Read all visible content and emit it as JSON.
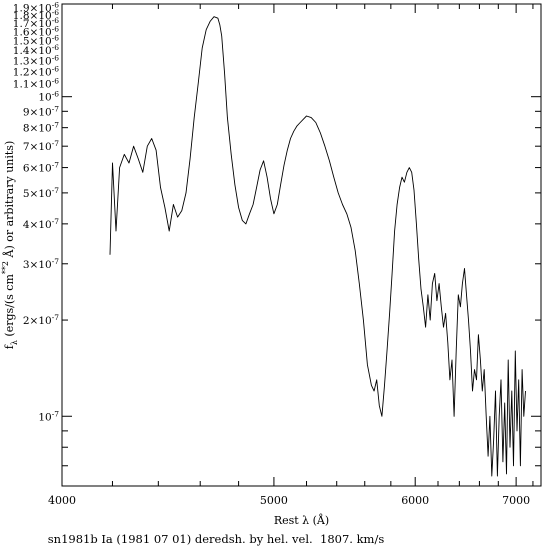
{
  "chart_data": {
    "type": "line",
    "title": "",
    "caption": "sn1981b Ia (1981 07 01) deredsh. by hel. vel.  1807. km/s",
    "xlabel": "Rest λ (Å)",
    "ylabel": "fλ (ergs/(s cm**2 Å) or arbitrary units)",
    "ylabel_parts": {
      "symbol": "f",
      "subscript": "λ",
      "units_a": " (ergs/(s cm",
      "units_sup": "**2",
      "units_b": " Å) or arbitrary units)"
    },
    "x_scale": "reciprocal",
    "y_scale": "log",
    "xlim": [
      4000,
      7300
    ],
    "ylim": [
      6.05e-08,
      1.95e-06
    ],
    "grid": false,
    "x_ticks": [
      {
        "value": 4000,
        "label": "4000"
      },
      {
        "value": 5000,
        "label": "5000"
      },
      {
        "value": 6000,
        "label": "6000"
      },
      {
        "value": 7000,
        "label": "7000"
      }
    ],
    "y_ticks": [
      {
        "value": 1e-07,
        "mant": "",
        "exp": "-7"
      },
      {
        "value": 2e-07,
        "mant": "2",
        "exp": "-7"
      },
      {
        "value": 3e-07,
        "mant": "3",
        "exp": "-7"
      },
      {
        "value": 4e-07,
        "mant": "4",
        "exp": "-7"
      },
      {
        "value": 5e-07,
        "mant": "5",
        "exp": "-7"
      },
      {
        "value": 6e-07,
        "mant": "6",
        "exp": "-7"
      },
      {
        "value": 7e-07,
        "mant": "7",
        "exp": "-7"
      },
      {
        "value": 8e-07,
        "mant": "8",
        "exp": "-7"
      },
      {
        "value": 9e-07,
        "mant": "9",
        "exp": "-7"
      },
      {
        "value": 1e-06,
        "mant": "",
        "exp": "-6"
      },
      {
        "value": 1.1e-06,
        "mant": "1.1",
        "exp": "-6"
      },
      {
        "value": 1.2e-06,
        "mant": "1.2",
        "exp": "-6"
      },
      {
        "value": 1.3e-06,
        "mant": "1.3",
        "exp": "-6"
      },
      {
        "value": 1.4e-06,
        "mant": "1.4",
        "exp": "-6"
      },
      {
        "value": 1.5e-06,
        "mant": "1.5",
        "exp": "-6"
      },
      {
        "value": 1.6e-06,
        "mant": "1.6",
        "exp": "-6"
      },
      {
        "value": 1.7e-06,
        "mant": "1.7",
        "exp": "-6"
      },
      {
        "value": 1.8e-06,
        "mant": "1.8",
        "exp": "-6"
      },
      {
        "value": 1.9e-06,
        "mant": "1.9",
        "exp": "-6"
      }
    ],
    "series": [
      {
        "color": "#000000",
        "x": [
          4190,
          4200,
          4215,
          4230,
          4250,
          4270,
          4290,
          4310,
          4330,
          4350,
          4370,
          4390,
          4410,
          4430,
          4450,
          4470,
          4490,
          4510,
          4530,
          4550,
          4570,
          4590,
          4610,
          4630,
          4650,
          4670,
          4690,
          4700,
          4710,
          4725,
          4740,
          4760,
          4780,
          4800,
          4820,
          4840,
          4860,
          4880,
          4900,
          4920,
          4940,
          4960,
          4980,
          5000,
          5020,
          5040,
          5060,
          5080,
          5100,
          5120,
          5140,
          5160,
          5180,
          5200,
          5230,
          5260,
          5290,
          5320,
          5350,
          5380,
          5410,
          5440,
          5470,
          5500,
          5530,
          5560,
          5590,
          5620,
          5650,
          5670,
          5690,
          5710,
          5730,
          5750,
          5770,
          5790,
          5810,
          5830,
          5850,
          5870,
          5890,
          5910,
          5930,
          5950,
          5970,
          5990,
          6010,
          6030,
          6050,
          6070,
          6090,
          6110,
          6130,
          6150,
          6170,
          6190,
          6210,
          6230,
          6250,
          6270,
          6290,
          6310,
          6330,
          6350,
          6370,
          6390,
          6410,
          6430,
          6450,
          6470,
          6490,
          6510,
          6530,
          6550,
          6570,
          6590,
          6610,
          6630,
          6650,
          6670,
          6690,
          6710,
          6730,
          6750,
          6770,
          6790,
          6810,
          6830,
          6850,
          6870,
          6890,
          6910,
          6930,
          6950,
          6970,
          6990,
          7010,
          7030,
          7050,
          7070,
          7090,
          7110
        ],
        "y": [
          3.2e-07,
          6.2e-07,
          3.8e-07,
          6e-07,
          6.6e-07,
          6.2e-07,
          7e-07,
          6.4e-07,
          5.8e-07,
          7e-07,
          7.4e-07,
          6.8e-07,
          5.2e-07,
          4.5e-07,
          3.8e-07,
          4.6e-07,
          4.2e-07,
          4.4e-07,
          5e-07,
          6.4e-07,
          8.6e-07,
          1.1e-06,
          1.42e-06,
          1.62e-06,
          1.72e-06,
          1.78e-06,
          1.76e-06,
          1.68e-06,
          1.55e-06,
          1.18e-06,
          8.6e-07,
          6.6e-07,
          5.3e-07,
          4.5e-07,
          4.1e-07,
          4e-07,
          4.3e-07,
          4.6e-07,
          5.2e-07,
          5.9e-07,
          6.3e-07,
          5.6e-07,
          4.8e-07,
          4.3e-07,
          4.6e-07,
          5.3e-07,
          6.1e-07,
          6.8e-07,
          7.4e-07,
          7.8e-07,
          8.1e-07,
          8.3e-07,
          8.5e-07,
          8.7e-07,
          8.6e-07,
          8.3e-07,
          7.7e-07,
          7e-07,
          6.3e-07,
          5.6e-07,
          5e-07,
          4.6e-07,
          4.3e-07,
          3.9e-07,
          3.3e-07,
          2.6e-07,
          2e-07,
          1.45e-07,
          1.25e-07,
          1.2e-07,
          1.3e-07,
          1.08e-07,
          1e-07,
          1.25e-07,
          1.6e-07,
          2.1e-07,
          2.8e-07,
          3.8e-07,
          4.6e-07,
          5.2e-07,
          5.6e-07,
          5.4e-07,
          5.8e-07,
          6e-07,
          5.8e-07,
          5.1e-07,
          4e-07,
          3.1e-07,
          2.5e-07,
          2.2e-07,
          1.9e-07,
          2.4e-07,
          2e-07,
          2.6e-07,
          2.8e-07,
          2.3e-07,
          2.6e-07,
          2.2e-07,
          1.9e-07,
          2.1e-07,
          1.7e-07,
          1.3e-07,
          1.5e-07,
          1e-07,
          1.6e-07,
          2.4e-07,
          2.2e-07,
          2.6e-07,
          2.9e-07,
          2.4e-07,
          2e-07,
          1.6e-07,
          1.2e-07,
          1.4e-07,
          1.3e-07,
          1.8e-07,
          1.5e-07,
          1.2e-07,
          1.4e-07,
          1e-07,
          7.5e-08,
          1e-07,
          6.5e-08,
          8.5e-08,
          1.2e-07,
          6.5e-08,
          1e-07,
          1.3e-07,
          7.2e-08,
          1.1e-07,
          6.6e-08,
          1.5e-07,
          8e-08,
          1.2e-07,
          7e-08,
          1.6e-07,
          9e-08,
          1.3e-07,
          7e-08,
          1.4e-07,
          1e-07,
          1.2e-07
        ]
      }
    ]
  }
}
